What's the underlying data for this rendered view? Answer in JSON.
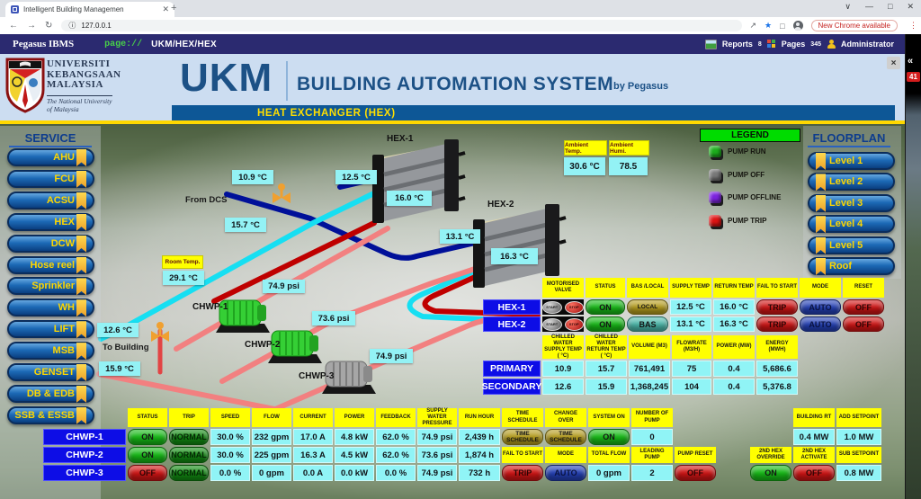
{
  "browser": {
    "tab_title": "Intelligent Building Managemen",
    "url": "127.0.0.1",
    "update_pill": "New Chrome available"
  },
  "icons": {
    "back": "←",
    "forward": "→",
    "reload": "↻",
    "info": "ⓘ",
    "share": "↗",
    "star": "★",
    "panel": "□",
    "menu": "⋮",
    "caret": "∨",
    "minimize": "—",
    "maximize": "□",
    "close": "✕",
    "tab_close": "✕",
    "new_tab": "+",
    "collapse": "«",
    "app_close": "×"
  },
  "navbar": {
    "brand": "Pegasus IBMS",
    "scheme": "page://",
    "path": "UKM/HEX/HEX",
    "reports": "Reports",
    "reports_count": "8",
    "pages": "Pages",
    "pages_count": "345",
    "user": "Administrator"
  },
  "header": {
    "uni1": "UNIVERSITI",
    "uni2": "KEBANGSAAN",
    "uni3": "MALAYSIA",
    "uni_sub1": "The National University",
    "uni_sub2": "of Malaysia",
    "logo_abbr": "UKM",
    "title": "BUILDING AUTOMATION SYSTEM",
    "by": "by Pegasus",
    "banner": "HEAT EXCHANGER (HEX)"
  },
  "side_panel": {
    "alarm_count": "41"
  },
  "service": {
    "title": "SERVICE",
    "items": [
      "AHU",
      "FCU",
      "ACSU",
      "HEX",
      "DCW",
      "Hose reel",
      "Sprinkler",
      "WH",
      "LIFT",
      "MSB",
      "GENSET",
      "DB & EDB",
      "SSB & ESSB"
    ]
  },
  "floorplan": {
    "title": "FLOORPLAN",
    "items": [
      "Level 1",
      "Level 2",
      "Level 3",
      "Level 4",
      "Level 5",
      "Roof"
    ]
  },
  "legend": {
    "title": "LEGEND",
    "items": [
      {
        "label": "PUMP RUN",
        "color": "#1cae1c"
      },
      {
        "label": "PUMP OFF",
        "color": "#787878"
      },
      {
        "label": "PUMP OFFLINE",
        "color": "#7b22dd"
      },
      {
        "label": "PUMP TRIP",
        "color": "#dd1414"
      }
    ]
  },
  "ambient": {
    "temp_label": "Ambient Temp.",
    "temp_value": "30.6 °C",
    "humi_label": "Ambient Humi.",
    "humi_value": "78.5"
  },
  "diagram": {
    "hex1": "HEX-1",
    "hex2": "HEX-2",
    "chwp1": "CHWP-1",
    "chwp2": "CHWP-2",
    "chwp3": "CHWP-3",
    "from_dcs": "From DCS",
    "to_building": "To Building",
    "room_temp_label": "Room Temp.",
    "room_temp": "29.1 °C",
    "t1": "10.9 °C",
    "t2": "12.5 °C",
    "t3": "16.0 °C",
    "t4": "15.7 °C",
    "t5": "13.1 °C",
    "t6": "16.3 °C",
    "t7": "12.6 °C",
    "t8": "15.9 °C",
    "p1": "74.9 psi",
    "p2": "73.6 psi",
    "p3": "74.9 psi"
  },
  "hex_table": {
    "headers": [
      "MOTORISED VALVE",
      "STATUS",
      "BAS /LOCAL",
      "SUPPLY TEMP",
      "RETURN TEMP",
      "FAIL TO START",
      "MODE",
      "RESET"
    ],
    "valve_buttons": {
      "start": "START",
      "stop": "STOP"
    },
    "rows": [
      {
        "name": "HEX-1",
        "cells": [
          [
            "ON",
            "green"
          ],
          [
            "LOCAL",
            "olive"
          ],
          [
            "12.5 °C",
            "val"
          ],
          [
            "16.0 °C",
            "val"
          ],
          [
            "TRIP",
            "red"
          ],
          [
            "AUTO",
            "blue"
          ],
          [
            "OFF",
            "red"
          ]
        ]
      },
      {
        "name": "HEX-2",
        "cells": [
          [
            "ON",
            "green"
          ],
          [
            "BAS",
            "teal"
          ],
          [
            "13.1 °C",
            "val"
          ],
          [
            "16.3 °C",
            "val"
          ],
          [
            "TRIP",
            "red"
          ],
          [
            "AUTO",
            "blue"
          ],
          [
            "OFF",
            "red"
          ]
        ]
      }
    ]
  },
  "loop_table": {
    "headers": [
      "CHILLED WATER SUPPLY TEMP ( °C)",
      "CHILLED WATER RETURN TEMP ( °C)",
      "VOLUME (m3)",
      "FLOWRATE (m3/h)",
      "POWER (MW)",
      "ENERGY (MWH)"
    ],
    "rows": [
      {
        "name": "PRIMARY",
        "cells": [
          [
            "10.9",
            "val"
          ],
          [
            "15.7",
            "val"
          ],
          [
            "761,491",
            "val"
          ],
          [
            "75",
            "val"
          ],
          [
            "0.4",
            "val"
          ],
          [
            "5,686.6",
            "val"
          ]
        ]
      },
      {
        "name": "SECONDARY",
        "cells": [
          [
            "12.6",
            "val"
          ],
          [
            "15.9",
            "val"
          ],
          [
            "1,368,245",
            "val"
          ],
          [
            "104",
            "val"
          ],
          [
            "0.4",
            "val"
          ],
          [
            "5,376.8",
            "val"
          ]
        ]
      }
    ]
  },
  "pump_table": {
    "col_headers": [
      "STATUS",
      "TRIP",
      "SPEED",
      "FLOW",
      "CURRENT",
      "POWER",
      "FEEDBACK",
      "SUPPLY WATER PRESSURE",
      "RUN HOUR"
    ],
    "rows": [
      {
        "name": "CHWP-1",
        "cells": [
          [
            "ON",
            "green"
          ],
          [
            "NORMAL",
            "dgreen"
          ],
          [
            "30.0 %",
            "val"
          ],
          [
            "232 gpm",
            "val"
          ],
          [
            "17.0 A",
            "val"
          ],
          [
            "4.8 kW",
            "val"
          ],
          [
            "62.0 %",
            "val"
          ],
          [
            "74.9 psi",
            "val"
          ],
          [
            "2,439 h",
            "val"
          ]
        ]
      },
      {
        "name": "CHWP-2",
        "cells": [
          [
            "ON",
            "green"
          ],
          [
            "NORMAL",
            "dgreen"
          ],
          [
            "30.0 %",
            "val"
          ],
          [
            "225 gpm",
            "val"
          ],
          [
            "16.3 A",
            "val"
          ],
          [
            "4.5 kW",
            "val"
          ],
          [
            "62.0 %",
            "val"
          ],
          [
            "73.6 psi",
            "val"
          ],
          [
            "1,874 h",
            "val"
          ]
        ]
      },
      {
        "name": "CHWP-3",
        "cells": [
          [
            "OFF",
            "red"
          ],
          [
            "NORMAL",
            "dgreen"
          ],
          [
            "0.0 %",
            "val"
          ],
          [
            "0 gpm",
            "val"
          ],
          [
            "0.0 A",
            "val"
          ],
          [
            "0.0 kW",
            "val"
          ],
          [
            "0.0 %",
            "val"
          ],
          [
            "74.9 psi",
            "val"
          ],
          [
            "732 h",
            "val"
          ]
        ]
      }
    ],
    "system": {
      "row1_headers": [
        "TIME SCHEDULE",
        "CHANGE OVER",
        "SYSTEM ON",
        "NUMBER OF PUMP"
      ],
      "row1_values": [
        [
          "TIME SCHEDULE",
          "olive"
        ],
        [
          "TIME SCHEDULE",
          "olive"
        ],
        [
          "ON",
          "green"
        ],
        [
          "0",
          "val"
        ]
      ],
      "row2_headers": [
        "FAIL TO START",
        "MODE",
        "TOTAL FLOW",
        "LEADING PUMP",
        "PUMP RESET"
      ],
      "row2_values": [
        [
          "TRIP",
          "red"
        ],
        [
          "AUTO",
          "blue"
        ],
        [
          "0 gpm",
          "val"
        ],
        [
          "2",
          "val"
        ],
        [
          "OFF",
          "red"
        ]
      ]
    },
    "right": {
      "row1_headers": [
        "BUILDING RT",
        "ADD SETPOINT"
      ],
      "row1_values": [
        [
          "0.4 MW",
          "val"
        ],
        [
          "1.0 MW",
          "val"
        ]
      ],
      "row2_headers": [
        "2ND HEX OVERRIDE",
        "2ND HEX ACTIVATE",
        "SUB SETPOINT"
      ],
      "row2_values": [
        [
          "ON",
          "green"
        ],
        [
          "OFF",
          "red"
        ],
        [
          "0.8 MW",
          "val"
        ]
      ]
    }
  }
}
